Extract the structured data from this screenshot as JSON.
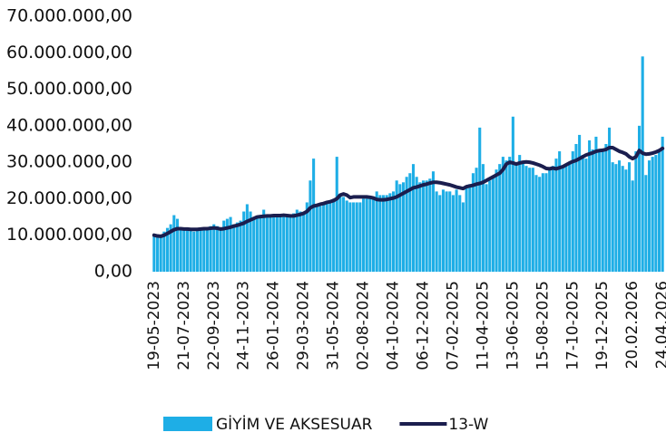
{
  "chart_data": {
    "type": "bar_line",
    "categories": [
      "19-05-2023",
      null,
      null,
      null,
      null,
      null,
      null,
      null,
      null,
      "21-07-2023",
      null,
      null,
      null,
      null,
      null,
      null,
      null,
      null,
      "22-09-2023",
      null,
      null,
      null,
      null,
      null,
      null,
      null,
      null,
      "24-11-2023",
      null,
      null,
      null,
      null,
      null,
      null,
      null,
      null,
      "26-01-2024",
      null,
      null,
      null,
      null,
      null,
      null,
      null,
      null,
      "29-03-2024",
      null,
      null,
      null,
      null,
      null,
      null,
      null,
      null,
      "31-05-2024",
      null,
      null,
      null,
      null,
      null,
      null,
      null,
      null,
      "02-08-2024",
      null,
      null,
      null,
      null,
      null,
      null,
      null,
      null,
      "04-10-2024",
      null,
      null,
      null,
      null,
      null,
      null,
      null,
      null,
      "06-12-2024",
      null,
      null,
      null,
      null,
      null,
      null,
      null,
      null,
      "07-02-2025",
      null,
      null,
      null,
      null,
      null,
      null,
      null,
      null,
      "11-04-2025",
      null,
      null,
      null,
      null,
      null,
      null,
      null,
      null,
      "13-06-2025",
      null,
      null,
      null,
      null,
      null,
      null,
      null,
      null,
      "15-08-2025",
      null,
      null,
      null,
      null,
      null,
      null,
      null,
      null,
      "17-10-2025",
      null,
      null,
      null,
      null,
      null,
      null,
      null,
      null,
      "19-12-2025",
      null,
      null,
      null,
      null,
      null,
      null,
      null,
      null,
      "20.02.2026",
      null,
      null,
      null,
      null,
      null,
      null,
      null,
      null,
      "24.04.2026"
    ],
    "series": [
      {
        "name": "GİYİM VE AKSESUAR",
        "type": "bar",
        "color": "#1eaee6",
        "values": [
          10000000,
          9500000,
          10000000,
          11000000,
          12000000,
          13000000,
          15500000,
          14500000,
          12000000,
          11500000,
          11500000,
          11500000,
          11000000,
          11500000,
          11500000,
          12000000,
          12000000,
          12500000,
          13000000,
          12500000,
          12000000,
          14000000,
          14500000,
          15000000,
          13000000,
          13500000,
          14000000,
          16500000,
          18500000,
          16500000,
          15000000,
          15000000,
          15500000,
          17000000,
          15500000,
          15000000,
          15500000,
          15500000,
          15000000,
          15500000,
          15000000,
          15500000,
          16000000,
          17000000,
          16500000,
          16000000,
          19000000,
          25000000,
          31000000,
          18000000,
          18000000,
          18500000,
          19000000,
          19500000,
          20000000,
          31500000,
          21000000,
          20500000,
          19500000,
          19000000,
          19000000,
          19000000,
          19000000,
          20000000,
          20000000,
          20000000,
          20000000,
          22000000,
          21000000,
          21000000,
          21000000,
          21500000,
          22000000,
          25000000,
          24000000,
          24500000,
          26000000,
          27000000,
          29500000,
          26000000,
          24500000,
          25000000,
          25000000,
          25500000,
          27500000,
          22000000,
          21000000,
          22500000,
          22000000,
          22000000,
          21000000,
          22500000,
          21000000,
          19000000,
          23000000,
          24000000,
          27000000,
          28500000,
          39500000,
          29500000,
          24000000,
          25000000,
          26000000,
          28000000,
          29500000,
          31500000,
          30500000,
          31500000,
          42500000,
          30000000,
          32000000,
          30000000,
          29000000,
          28500000,
          28500000,
          26500000,
          26000000,
          27000000,
          27000000,
          28000000,
          29000000,
          31000000,
          33000000,
          28500000,
          29000000,
          30000000,
          33000000,
          35000000,
          37500000,
          32000000,
          31000000,
          36000000,
          33500000,
          37000000,
          33000000,
          33500000,
          35000000,
          39500000,
          30000000,
          29500000,
          30500000,
          29000000,
          28000000,
          30000000,
          25000000,
          33000000,
          40000000,
          59000000,
          26500000,
          30500000,
          31500000,
          32000000,
          33000000,
          37000000
        ]
      },
      {
        "name": "13-W",
        "type": "line",
        "color": "#1b1e4e",
        "values": [
          10000000,
          9800000,
          9700000,
          10000000,
          10500000,
          11000000,
          11500000,
          11800000,
          11800000,
          11700000,
          11700000,
          11600000,
          11600000,
          11600000,
          11700000,
          11800000,
          11800000,
          11900000,
          12000000,
          11900000,
          11700000,
          11800000,
          12000000,
          12200000,
          12500000,
          12700000,
          13000000,
          13300000,
          13800000,
          14200000,
          14600000,
          15000000,
          15100000,
          15200000,
          15300000,
          15300000,
          15400000,
          15400000,
          15400000,
          15500000,
          15400000,
          15300000,
          15300000,
          15500000,
          15700000,
          16000000,
          16500000,
          17500000,
          18000000,
          18200000,
          18500000,
          18700000,
          19000000,
          19200000,
          19500000,
          20000000,
          21000000,
          21300000,
          21000000,
          20300000,
          20500000,
          20500000,
          20500000,
          20500000,
          20500000,
          20400000,
          20200000,
          19800000,
          19700000,
          19700000,
          19800000,
          20000000,
          20200000,
          20500000,
          21000000,
          21500000,
          22000000,
          22500000,
          23000000,
          23200000,
          23500000,
          23800000,
          24000000,
          24300000,
          24500000,
          24500000,
          24400000,
          24200000,
          24000000,
          23800000,
          23500000,
          23200000,
          23000000,
          22800000,
          23300000,
          23500000,
          23700000,
          24000000,
          24200000,
          24500000,
          25000000,
          25500000,
          26000000,
          26500000,
          27000000,
          28000000,
          29500000,
          30000000,
          29800000,
          29500000,
          29800000,
          30000000,
          30100000,
          30000000,
          29800000,
          29500000,
          29200000,
          28800000,
          28300000,
          28200000,
          28400000,
          28200000,
          28500000,
          28800000,
          29300000,
          29800000,
          30200000,
          30500000,
          31000000,
          31500000,
          32000000,
          32300000,
          32600000,
          33000000,
          33200000,
          33300000,
          33500000,
          34000000,
          34000000,
          33500000,
          33000000,
          32700000,
          32300000,
          31500000,
          31000000,
          31500000,
          33200000,
          32500000,
          32200000,
          32300000,
          32500000,
          32800000,
          33200000,
          33800000
        ]
      }
    ],
    "ylim": [
      0,
      70000000
    ],
    "yticks": [
      {
        "value": 0,
        "label": "0,00"
      },
      {
        "value": 10000000,
        "label": "10.000.000,00"
      },
      {
        "value": 20000000,
        "label": "20.000.000,00"
      },
      {
        "value": 30000000,
        "label": "30.000.000,00"
      },
      {
        "value": 40000000,
        "label": "40.000.000,00"
      },
      {
        "value": 50000000,
        "label": "50.000.000,00"
      },
      {
        "value": 60000000,
        "label": "60.000.000,00"
      },
      {
        "value": 70000000,
        "label": "70.000.000,00"
      }
    ],
    "grid": false,
    "legend": "bottom"
  }
}
